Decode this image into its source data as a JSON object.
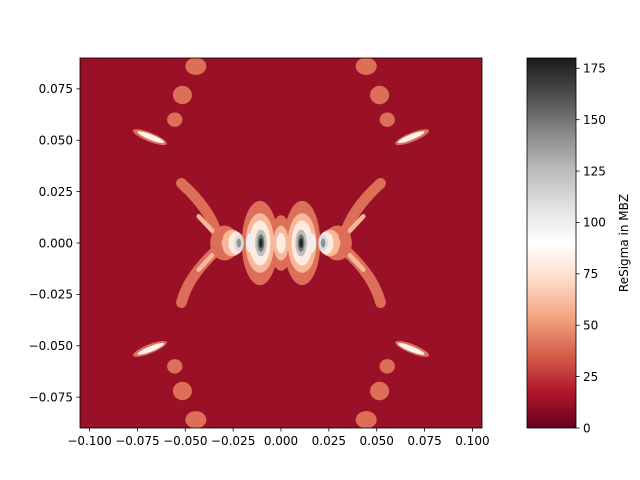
{
  "chart_data": {
    "type": "contour",
    "title": "",
    "xlabel": "",
    "ylabel": "",
    "colorbar_label": "ReSigma in MBZ",
    "colormap": "RdGy",
    "xlim": [
      -0.105,
      0.105
    ],
    "ylim": [
      -0.09,
      0.09
    ],
    "clim": [
      0,
      180
    ],
    "x_ticks": [
      {
        "value": -0.1,
        "label": "−0.100"
      },
      {
        "value": -0.075,
        "label": "−0.075"
      },
      {
        "value": -0.05,
        "label": "−0.050"
      },
      {
        "value": -0.025,
        "label": "−0.025"
      },
      {
        "value": 0.0,
        "label": "0.000"
      },
      {
        "value": 0.025,
        "label": "0.025"
      },
      {
        "value": 0.05,
        "label": "0.050"
      },
      {
        "value": 0.075,
        "label": "0.075"
      },
      {
        "value": 0.1,
        "label": "0.100"
      }
    ],
    "y_ticks": [
      {
        "value": -0.075,
        "label": "−0.075"
      },
      {
        "value": -0.05,
        "label": "−0.050"
      },
      {
        "value": -0.025,
        "label": "−0.025"
      },
      {
        "value": 0.0,
        "label": "0.000"
      },
      {
        "value": 0.025,
        "label": "0.025"
      },
      {
        "value": 0.05,
        "label": "0.050"
      },
      {
        "value": 0.075,
        "label": "0.075"
      }
    ],
    "colorbar_ticks": [
      {
        "value": 0,
        "label": "0"
      },
      {
        "value": 25,
        "label": "25"
      },
      {
        "value": 50,
        "label": "50"
      },
      {
        "value": 75,
        "label": "75"
      },
      {
        "value": 100,
        "label": "100"
      },
      {
        "value": 125,
        "label": "125"
      },
      {
        "value": 150,
        "label": "150"
      },
      {
        "value": 175,
        "label": "175"
      }
    ],
    "colorbar_stops": [
      {
        "value": 0,
        "color": "#67001f"
      },
      {
        "value": 18,
        "color": "#b2182b"
      },
      {
        "value": 36,
        "color": "#d6604d"
      },
      {
        "value": 54,
        "color": "#f4a582"
      },
      {
        "value": 72,
        "color": "#fddbc7"
      },
      {
        "value": 90,
        "color": "#ffffff"
      },
      {
        "value": 108,
        "color": "#e0e0e0"
      },
      {
        "value": 126,
        "color": "#bababa"
      },
      {
        "value": 144,
        "color": "#878787"
      },
      {
        "value": 162,
        "color": "#4d4d4d"
      },
      {
        "value": 180,
        "color": "#1a1a1a"
      }
    ],
    "background_level": 12,
    "regions": [
      {
        "kind": "blob",
        "cx": -0.0295,
        "cy": 0.0,
        "rx": 0.0075,
        "ry": 0.0085,
        "level": 40
      },
      {
        "kind": "blob",
        "cx": 0.0295,
        "cy": 0.0,
        "rx": 0.0075,
        "ry": 0.0085,
        "level": 40
      },
      {
        "kind": "blob",
        "cx": -0.011,
        "cy": 0.0,
        "rx": 0.0095,
        "ry": 0.0205,
        "level": 40
      },
      {
        "kind": "blob",
        "cx": 0.011,
        "cy": 0.0,
        "rx": 0.0095,
        "ry": 0.0205,
        "level": 40
      },
      {
        "kind": "blob",
        "cx": 0.0,
        "cy": 0.0,
        "rx": 0.006,
        "ry": 0.0135,
        "level": 40
      },
      {
        "kind": "blob",
        "cx": -0.0255,
        "cy": 0.0,
        "rx": 0.0055,
        "ry": 0.0065,
        "level": 60
      },
      {
        "kind": "blob",
        "cx": 0.0255,
        "cy": 0.0,
        "rx": 0.0055,
        "ry": 0.0065,
        "level": 60
      },
      {
        "kind": "blob",
        "cx": -0.011,
        "cy": 0.0,
        "rx": 0.0075,
        "ry": 0.0145,
        "level": 60
      },
      {
        "kind": "blob",
        "cx": 0.011,
        "cy": 0.0,
        "rx": 0.0075,
        "ry": 0.0145,
        "level": 60
      },
      {
        "kind": "blob",
        "cx": 0.0,
        "cy": 0.0,
        "rx": 0.004,
        "ry": 0.0085,
        "level": 60
      },
      {
        "kind": "blob",
        "cx": -0.0235,
        "cy": 0.0,
        "rx": 0.004,
        "ry": 0.0055,
        "level": 80
      },
      {
        "kind": "blob",
        "cx": 0.0235,
        "cy": 0.0,
        "rx": 0.004,
        "ry": 0.0055,
        "level": 80
      },
      {
        "kind": "blob",
        "cx": -0.011,
        "cy": 0.0,
        "rx": 0.0055,
        "ry": 0.011,
        "level": 80
      },
      {
        "kind": "blob",
        "cx": 0.011,
        "cy": 0.0,
        "rx": 0.0055,
        "ry": 0.011,
        "level": 80
      },
      {
        "kind": "blob",
        "cx": 0.0,
        "cy": 0.0,
        "rx": 0.0025,
        "ry": 0.005,
        "level": 80
      },
      {
        "kind": "blob",
        "cx": -0.022,
        "cy": 0.0,
        "rx": 0.0025,
        "ry": 0.004,
        "level": 110
      },
      {
        "kind": "blob",
        "cx": 0.022,
        "cy": 0.0,
        "rx": 0.0025,
        "ry": 0.004,
        "level": 110
      },
      {
        "kind": "blob",
        "cx": -0.0165,
        "cy": 0.0,
        "rx": 0.0018,
        "ry": 0.0045,
        "level": 100
      },
      {
        "kind": "blob",
        "cx": 0.0165,
        "cy": 0.0,
        "rx": 0.0018,
        "ry": 0.0045,
        "level": 100
      },
      {
        "kind": "blob",
        "cx": -0.0105,
        "cy": 0.0,
        "rx": 0.003,
        "ry": 0.0065,
        "level": 125
      },
      {
        "kind": "blob",
        "cx": 0.0105,
        "cy": 0.0,
        "rx": 0.003,
        "ry": 0.0065,
        "level": 125
      },
      {
        "kind": "blob",
        "cx": -0.0105,
        "cy": 0.0,
        "rx": 0.0018,
        "ry": 0.0042,
        "level": 150
      },
      {
        "kind": "blob",
        "cx": 0.0105,
        "cy": 0.0,
        "rx": 0.0018,
        "ry": 0.0042,
        "level": 150
      },
      {
        "kind": "blob",
        "cx": -0.0105,
        "cy": 0.0,
        "rx": 0.001,
        "ry": 0.0024,
        "level": 175
      },
      {
        "kind": "blob",
        "cx": 0.0105,
        "cy": 0.0,
        "rx": 0.001,
        "ry": 0.0024,
        "level": 175
      },
      {
        "kind": "blob",
        "cx": -0.022,
        "cy": 0.0,
        "rx": 0.0012,
        "ry": 0.0022,
        "level": 140
      },
      {
        "kind": "blob",
        "cx": 0.022,
        "cy": 0.0,
        "rx": 0.0012,
        "ry": 0.0022,
        "level": 140
      },
      {
        "kind": "arc",
        "x1": -0.052,
        "y1": 0.029,
        "x2": -0.033,
        "y2": 0.003,
        "bend": 0.006,
        "w": 0.0028,
        "level": 40
      },
      {
        "kind": "arc",
        "x1": 0.052,
        "y1": 0.029,
        "x2": 0.033,
        "y2": 0.003,
        "bend": -0.006,
        "w": 0.0028,
        "level": 40
      },
      {
        "kind": "arc",
        "x1": -0.052,
        "y1": -0.029,
        "x2": -0.033,
        "y2": -0.003,
        "bend": -0.006,
        "w": 0.0028,
        "level": 40
      },
      {
        "kind": "arc",
        "x1": 0.052,
        "y1": -0.029,
        "x2": 0.033,
        "y2": -0.003,
        "bend": 0.006,
        "w": 0.0028,
        "level": 40
      },
      {
        "kind": "arc",
        "x1": -0.043,
        "y1": 0.013,
        "x2": -0.036,
        "y2": 0.006,
        "bend": 0.0,
        "w": 0.0012,
        "level": 60
      },
      {
        "kind": "arc",
        "x1": 0.043,
        "y1": 0.013,
        "x2": 0.036,
        "y2": 0.006,
        "bend": 0.0,
        "w": 0.0012,
        "level": 60
      },
      {
        "kind": "arc",
        "x1": -0.043,
        "y1": -0.013,
        "x2": -0.036,
        "y2": -0.006,
        "bend": 0.0,
        "w": 0.0012,
        "level": 60
      },
      {
        "kind": "arc",
        "x1": 0.043,
        "y1": -0.013,
        "x2": 0.036,
        "y2": -0.006,
        "bend": 0.0,
        "w": 0.0012,
        "level": 60
      },
      {
        "kind": "blob",
        "cx": -0.0685,
        "cy": 0.0515,
        "rx": 0.0095,
        "ry": 0.0022,
        "rot": -22,
        "level": 40
      },
      {
        "kind": "blob",
        "cx": 0.0685,
        "cy": 0.0515,
        "rx": 0.0095,
        "ry": 0.0022,
        "rot": 22,
        "level": 40
      },
      {
        "kind": "blob",
        "cx": -0.0685,
        "cy": -0.0515,
        "rx": 0.0095,
        "ry": 0.0022,
        "rot": 22,
        "level": 40
      },
      {
        "kind": "blob",
        "cx": 0.0685,
        "cy": -0.0515,
        "rx": 0.0095,
        "ry": 0.0022,
        "rot": -22,
        "level": 40
      },
      {
        "kind": "blob",
        "cx": -0.068,
        "cy": 0.0515,
        "rx": 0.0075,
        "ry": 0.0013,
        "rot": -22,
        "level": 85
      },
      {
        "kind": "blob",
        "cx": 0.068,
        "cy": 0.0515,
        "rx": 0.0075,
        "ry": 0.0013,
        "rot": 22,
        "level": 85
      },
      {
        "kind": "blob",
        "cx": -0.068,
        "cy": -0.0515,
        "rx": 0.0075,
        "ry": 0.0013,
        "rot": 22,
        "level": 85
      },
      {
        "kind": "blob",
        "cx": 0.068,
        "cy": -0.0515,
        "rx": 0.0075,
        "ry": 0.0013,
        "rot": -22,
        "level": 85
      },
      {
        "kind": "blob",
        "cx": -0.0445,
        "cy": 0.086,
        "rx": 0.0055,
        "ry": 0.0042,
        "level": 40
      },
      {
        "kind": "blob",
        "cx": 0.0445,
        "cy": 0.086,
        "rx": 0.0055,
        "ry": 0.0042,
        "level": 40
      },
      {
        "kind": "blob",
        "cx": -0.0445,
        "cy": -0.086,
        "rx": 0.0055,
        "ry": 0.0042,
        "level": 40
      },
      {
        "kind": "blob",
        "cx": 0.0445,
        "cy": -0.086,
        "rx": 0.0055,
        "ry": 0.0042,
        "level": 40
      },
      {
        "kind": "blob",
        "cx": -0.0515,
        "cy": 0.072,
        "rx": 0.005,
        "ry": 0.0045,
        "level": 40
      },
      {
        "kind": "blob",
        "cx": 0.0515,
        "cy": 0.072,
        "rx": 0.005,
        "ry": 0.0045,
        "level": 40
      },
      {
        "kind": "blob",
        "cx": -0.0515,
        "cy": -0.072,
        "rx": 0.005,
        "ry": 0.0045,
        "level": 40
      },
      {
        "kind": "blob",
        "cx": 0.0515,
        "cy": -0.072,
        "rx": 0.005,
        "ry": 0.0045,
        "level": 40
      },
      {
        "kind": "blob",
        "cx": -0.0555,
        "cy": 0.06,
        "rx": 0.004,
        "ry": 0.0035,
        "level": 40
      },
      {
        "kind": "blob",
        "cx": 0.0555,
        "cy": 0.06,
        "rx": 0.004,
        "ry": 0.0035,
        "level": 40
      },
      {
        "kind": "blob",
        "cx": -0.0555,
        "cy": -0.06,
        "rx": 0.004,
        "ry": 0.0035,
        "level": 40
      },
      {
        "kind": "blob",
        "cx": 0.0555,
        "cy": -0.06,
        "rx": 0.004,
        "ry": 0.0035,
        "level": 40
      }
    ]
  }
}
